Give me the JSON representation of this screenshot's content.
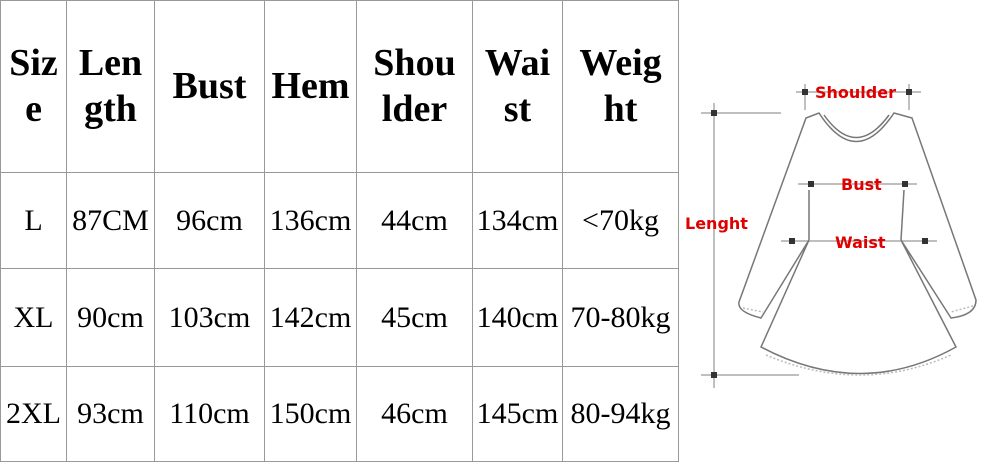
{
  "table": {
    "headers": [
      "Size",
      "Length",
      "Bust",
      "Hem",
      "Shoulder",
      "Waist",
      "Weight"
    ],
    "header_display": [
      "Siz e",
      "Len gth",
      "Bust",
      "Hem",
      "Shou lder",
      "Wai st",
      "Weig ht"
    ],
    "rows": [
      [
        "L",
        "87CM",
        "96cm",
        "136cm",
        "44cm",
        "134cm",
        "<70kg"
      ],
      [
        "XL",
        "90cm",
        "103cm",
        "142cm",
        "45cm",
        "140cm",
        "70-80kg"
      ],
      [
        "2XL",
        "93cm",
        "110cm",
        "150cm",
        "46cm",
        "145cm",
        "80-94kg"
      ]
    ]
  },
  "diagram": {
    "labels": {
      "shoulder": "Shoulder",
      "bust": "Bust",
      "waist": "Waist",
      "length": "Lenght"
    },
    "label_color": "#e00000",
    "line_color": "#777777"
  }
}
